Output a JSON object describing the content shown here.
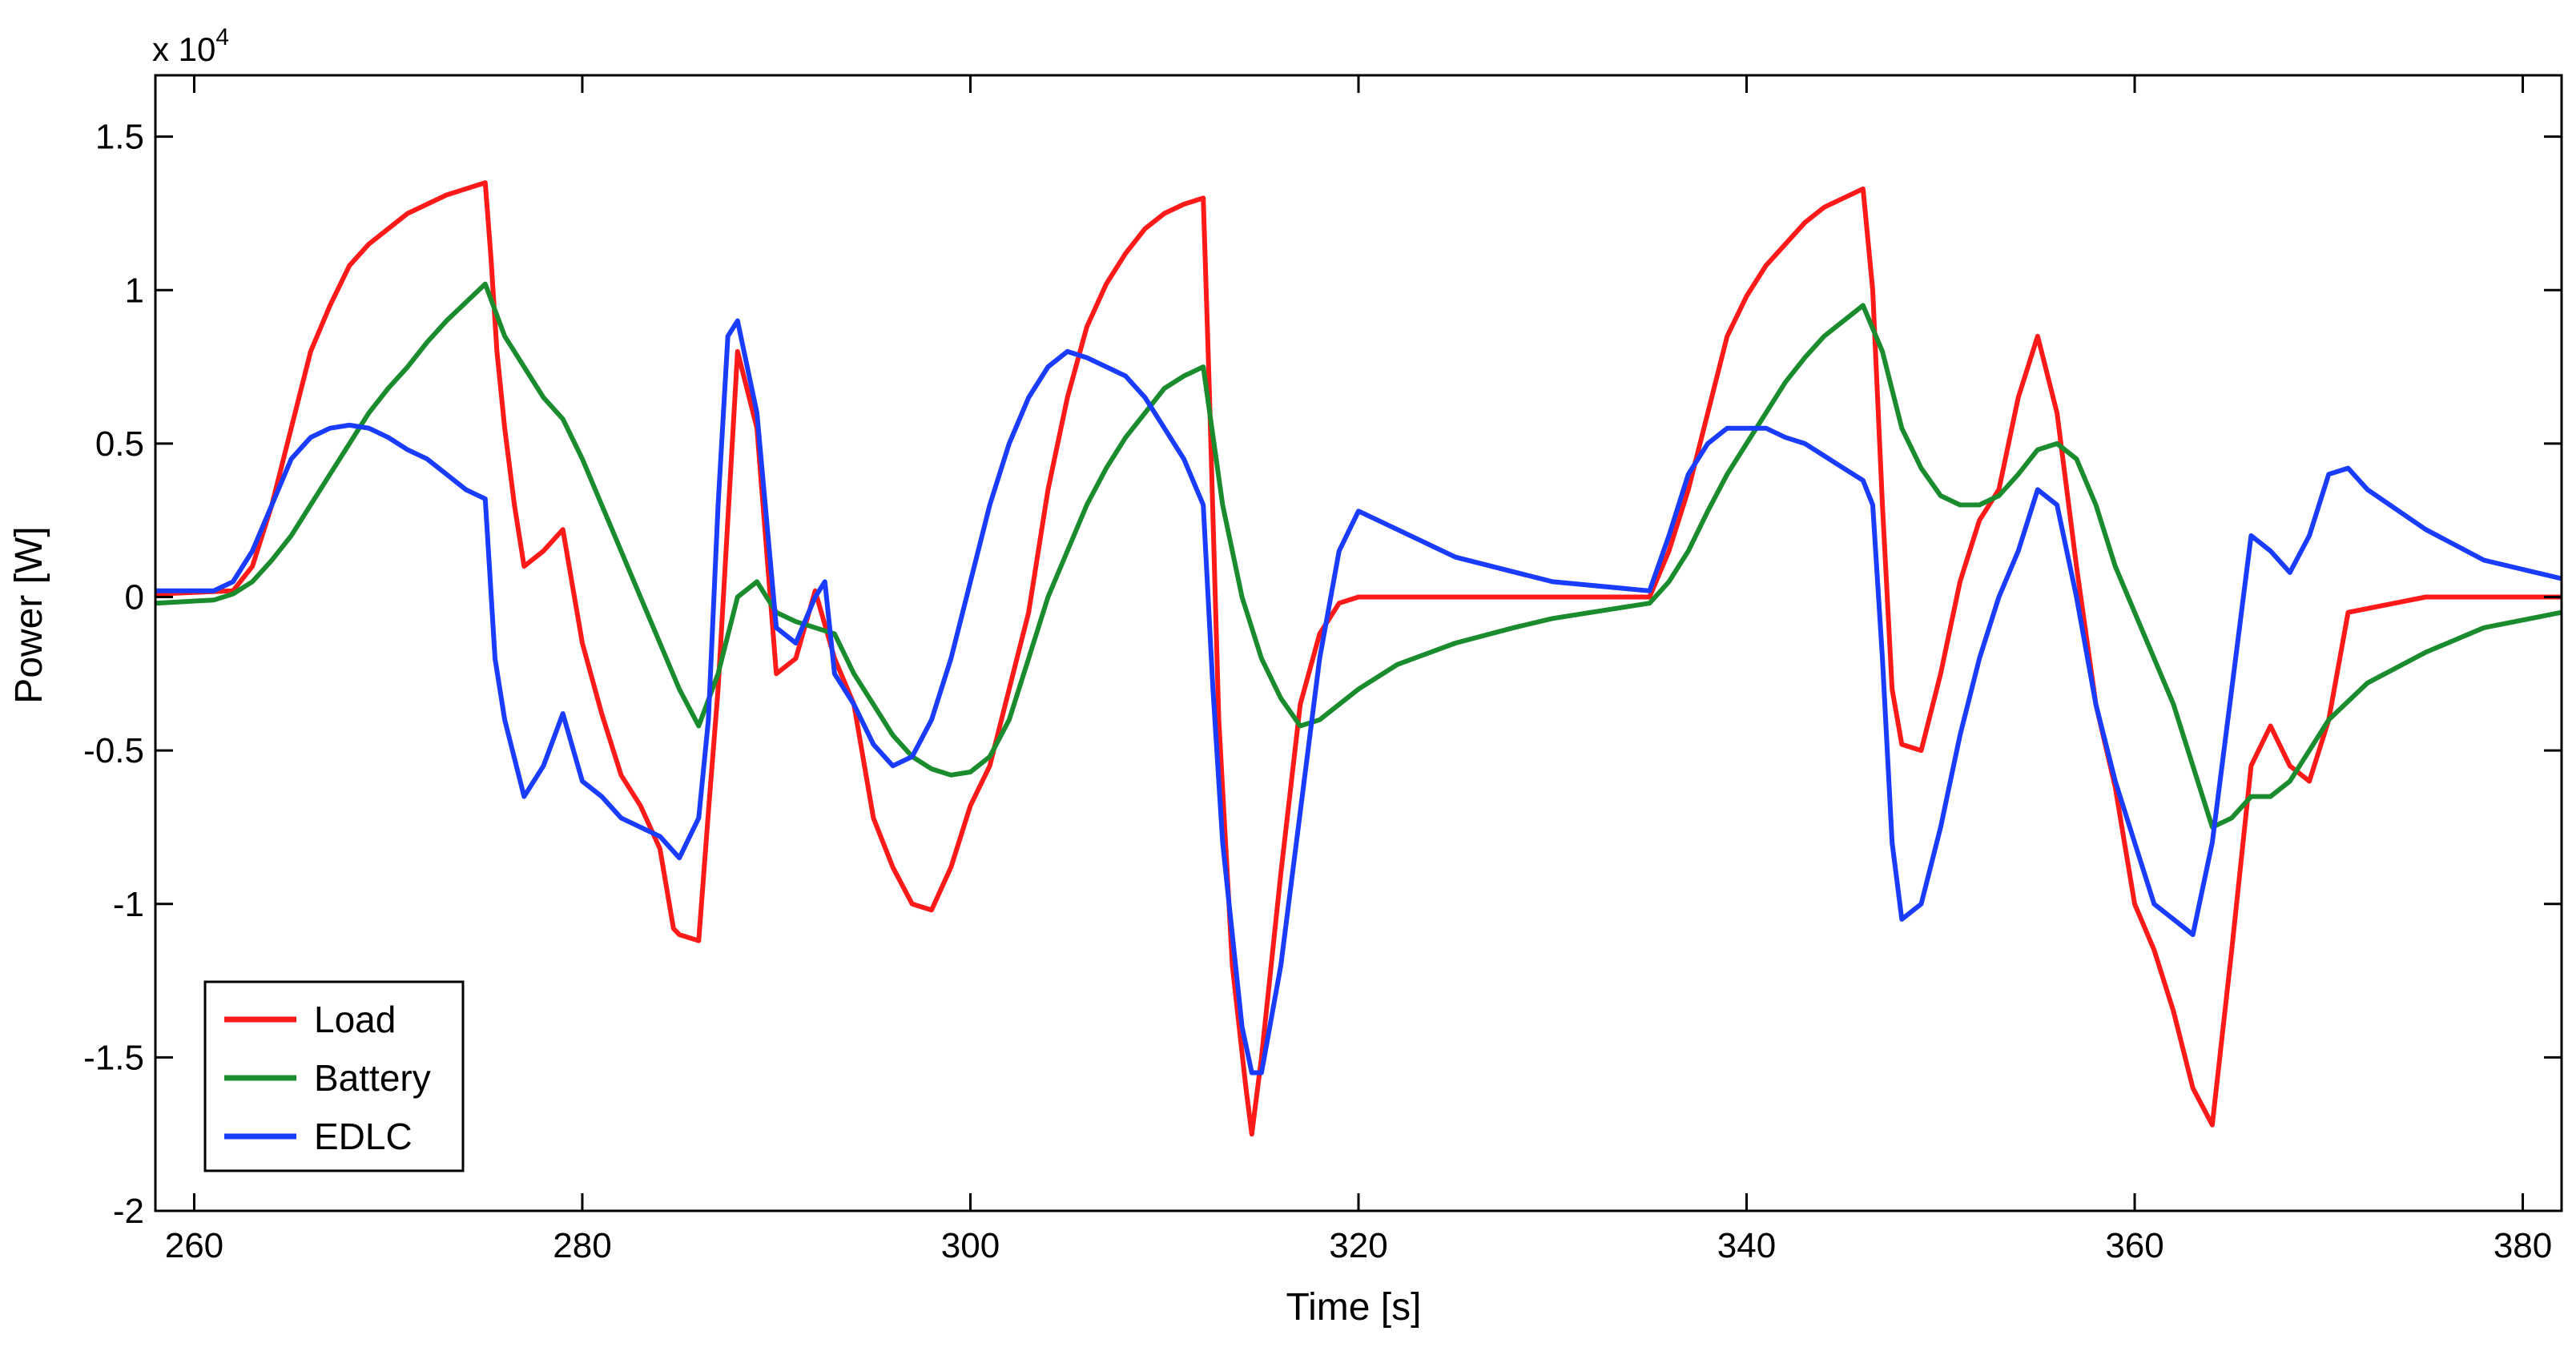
{
  "chart_data": {
    "type": "line",
    "title": "",
    "xlabel": "Time [s]",
    "ylabel": "Power [W]",
    "y_multiplier_label": "x 10",
    "y_multiplier_exp": "4",
    "xlim": [
      258,
      382
    ],
    "ylim": [
      -2,
      1.7
    ],
    "y_scale_factor": 10000,
    "xticks": [
      260,
      280,
      300,
      320,
      340,
      360,
      380
    ],
    "xtick_labels": [
      "260",
      "280",
      "300",
      "320",
      "340",
      "360",
      "380"
    ],
    "yticks": [
      -2,
      -1.5,
      -1,
      -0.5,
      0,
      0.5,
      1,
      1.5
    ],
    "ytick_labels": [
      "-2",
      "-1.5",
      "-1",
      "-0.5",
      "0",
      "0.5",
      "1",
      "1.5"
    ],
    "grid": false,
    "legend_position": "bottom-left",
    "series": [
      {
        "name": "Load",
        "color": "#ff1a1a",
        "x": [
          258,
          262,
          263,
          264,
          265,
          266,
          267,
          268,
          269,
          270,
          271,
          272,
          273,
          274,
          275,
          275.3,
          275.6,
          276,
          276.5,
          277,
          278,
          279,
          280,
          281,
          282,
          283,
          284,
          284.7,
          285,
          286,
          286.5,
          287,
          288,
          289,
          290,
          291,
          292,
          293,
          294,
          295,
          296,
          297,
          298,
          299,
          300,
          301,
          302,
          303,
          304,
          305,
          306,
          307,
          308,
          309,
          310,
          311,
          312,
          312.3,
          312.8,
          313.5,
          314.2,
          314.5,
          315,
          316,
          317,
          318,
          319,
          320,
          322,
          325,
          330,
          335,
          336,
          337,
          338,
          339,
          340,
          341,
          342,
          343,
          344,
          345,
          346,
          346.5,
          347,
          347.5,
          348,
          349,
          350,
          351,
          352,
          353,
          354,
          355,
          356,
          357,
          358,
          359,
          360,
          361,
          362,
          363,
          364,
          365,
          366,
          367,
          368,
          369,
          370,
          371,
          375,
          382
        ],
        "y": [
          0.01,
          0.02,
          0.1,
          0.3,
          0.55,
          0.8,
          0.95,
          1.08,
          1.15,
          1.2,
          1.25,
          1.28,
          1.31,
          1.33,
          1.35,
          1.1,
          0.8,
          0.55,
          0.3,
          0.1,
          0.15,
          0.22,
          -0.15,
          -0.38,
          -0.58,
          -0.68,
          -0.82,
          -1.08,
          -1.1,
          -1.12,
          -0.7,
          -0.3,
          0.8,
          0.55,
          -0.25,
          -0.2,
          0.02,
          -0.2,
          -0.35,
          -0.72,
          -0.88,
          -1.0,
          -1.02,
          -0.88,
          -0.68,
          -0.55,
          -0.3,
          -0.05,
          0.35,
          0.65,
          0.88,
          1.02,
          1.12,
          1.2,
          1.25,
          1.28,
          1.3,
          0.7,
          -0.4,
          -1.2,
          -1.6,
          -1.75,
          -1.5,
          -0.9,
          -0.35,
          -0.12,
          -0.02,
          0,
          0,
          0,
          0,
          0,
          0.15,
          0.35,
          0.6,
          0.85,
          0.98,
          1.08,
          1.15,
          1.22,
          1.27,
          1.3,
          1.33,
          1.0,
          0.3,
          -0.3,
          -0.48,
          -0.5,
          -0.25,
          0.05,
          0.25,
          0.35,
          0.65,
          0.85,
          0.6,
          0.1,
          -0.35,
          -0.62,
          -1.0,
          -1.15,
          -1.35,
          -1.6,
          -1.72,
          -1.15,
          -0.55,
          -0.42,
          -0.55,
          -0.6,
          -0.4,
          -0.05,
          0,
          0
        ],
        "_comment": ""
      },
      {
        "name": "Battery",
        "color": "#1a8c2e",
        "x": [
          258,
          261,
          262,
          263,
          264,
          265,
          266,
          267,
          268,
          269,
          270,
          271,
          272,
          273,
          274,
          275,
          276,
          277,
          278,
          279,
          280,
          281,
          282,
          283,
          284,
          285,
          286,
          287,
          288,
          289,
          290,
          291,
          292,
          293,
          294,
          295,
          296,
          297,
          298,
          299,
          300,
          301,
          302,
          303,
          304,
          305,
          306,
          307,
          308,
          309,
          310,
          311,
          312,
          313,
          314,
          315,
          316,
          317,
          318,
          319,
          320,
          322,
          325,
          328,
          330,
          333,
          335,
          336,
          337,
          338,
          339,
          340,
          341,
          342,
          343,
          344,
          345,
          346,
          347,
          348,
          349,
          350,
          351,
          352,
          353,
          354,
          355,
          356,
          357,
          358,
          359,
          360,
          361,
          362,
          363,
          364,
          365,
          366,
          367,
          368,
          369,
          370,
          372,
          375,
          378,
          382
        ],
        "y": [
          -0.02,
          -0.01,
          0.01,
          0.05,
          0.12,
          0.2,
          0.3,
          0.4,
          0.5,
          0.6,
          0.68,
          0.75,
          0.83,
          0.9,
          0.96,
          1.02,
          0.85,
          0.75,
          0.65,
          0.58,
          0.45,
          0.3,
          0.15,
          0.0,
          -0.15,
          -0.3,
          -0.42,
          -0.25,
          0.0,
          0.05,
          -0.05,
          -0.08,
          -0.1,
          -0.12,
          -0.25,
          -0.35,
          -0.45,
          -0.52,
          -0.56,
          -0.58,
          -0.57,
          -0.52,
          -0.4,
          -0.2,
          0.0,
          0.15,
          0.3,
          0.42,
          0.52,
          0.6,
          0.68,
          0.72,
          0.75,
          0.3,
          0.0,
          -0.2,
          -0.33,
          -0.42,
          -0.4,
          -0.35,
          -0.3,
          -0.22,
          -0.15,
          -0.1,
          -0.07,
          -0.04,
          -0.02,
          0.05,
          0.15,
          0.28,
          0.4,
          0.5,
          0.6,
          0.7,
          0.78,
          0.85,
          0.9,
          0.95,
          0.8,
          0.55,
          0.42,
          0.33,
          0.3,
          0.3,
          0.33,
          0.4,
          0.48,
          0.5,
          0.45,
          0.3,
          0.1,
          -0.05,
          -0.2,
          -0.35,
          -0.55,
          -0.75,
          -0.72,
          -0.65,
          -0.65,
          -0.6,
          -0.5,
          -0.4,
          -0.28,
          -0.18,
          -0.1,
          -0.05
        ],
        "_comment": ""
      },
      {
        "name": "EDLC",
        "color": "#1a3cff",
        "x": [
          258,
          261,
          262,
          263,
          264,
          265,
          266,
          267,
          268,
          269,
          270,
          271,
          272,
          273,
          274,
          275,
          275.5,
          276,
          277,
          278,
          279,
          280,
          281,
          282,
          283,
          284,
          285,
          286,
          286.5,
          287,
          287.5,
          288,
          289,
          290,
          291,
          292,
          292.5,
          293,
          294,
          295,
          296,
          297,
          298,
          299,
          300,
          301,
          302,
          303,
          304,
          305,
          306,
          307,
          308,
          309,
          310,
          311,
          312,
          312.5,
          313,
          313.5,
          314,
          314.5,
          315,
          316,
          317,
          318,
          319,
          320,
          322,
          325,
          330,
          335,
          336,
          337,
          338,
          339,
          340,
          341,
          342,
          343,
          344,
          345,
          346,
          346.5,
          347,
          347.5,
          348,
          349,
          350,
          351,
          352,
          353,
          354,
          355,
          356,
          357,
          358,
          359,
          360,
          361,
          362,
          363,
          364,
          365,
          366,
          367,
          368,
          369,
          370,
          371,
          372,
          375,
          378,
          382
        ],
        "y": [
          0.02,
          0.02,
          0.05,
          0.15,
          0.3,
          0.45,
          0.52,
          0.55,
          0.56,
          0.55,
          0.52,
          0.48,
          0.45,
          0.4,
          0.35,
          0.32,
          -0.2,
          -0.4,
          -0.65,
          -0.55,
          -0.38,
          -0.6,
          -0.65,
          -0.72,
          -0.75,
          -0.78,
          -0.85,
          -0.72,
          -0.4,
          0.3,
          0.85,
          0.9,
          0.6,
          -0.1,
          -0.15,
          0.0,
          0.05,
          -0.25,
          -0.35,
          -0.48,
          -0.55,
          -0.52,
          -0.4,
          -0.2,
          0.05,
          0.3,
          0.5,
          0.65,
          0.75,
          0.8,
          0.78,
          0.75,
          0.72,
          0.65,
          0.55,
          0.45,
          0.3,
          -0.3,
          -0.8,
          -1.1,
          -1.4,
          -1.55,
          -1.55,
          -1.2,
          -0.7,
          -0.2,
          0.15,
          0.28,
          0.22,
          0.13,
          0.05,
          0.02,
          0.2,
          0.4,
          0.5,
          0.55,
          0.55,
          0.55,
          0.52,
          0.5,
          0.46,
          0.42,
          0.38,
          0.3,
          -0.2,
          -0.8,
          -1.05,
          -1.0,
          -0.75,
          -0.45,
          -0.2,
          0.0,
          0.15,
          0.35,
          0.3,
          0.0,
          -0.35,
          -0.6,
          -0.8,
          -1.0,
          -1.05,
          -1.1,
          -0.8,
          -0.3,
          0.2,
          0.15,
          0.08,
          0.2,
          0.4,
          0.42,
          0.35,
          0.22,
          0.12,
          0.06
        ],
        "_comment": ""
      }
    ]
  }
}
